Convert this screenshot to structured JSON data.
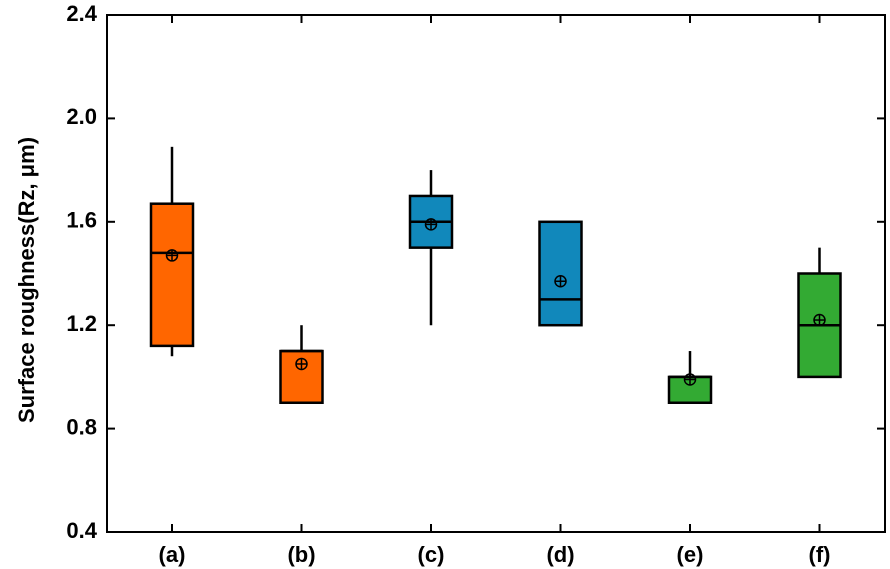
{
  "chart_data": {
    "type": "box",
    "ylabel": "Surface roughness(Rz, μm)",
    "xlabel": "",
    "ylim": [
      0.4,
      2.4
    ],
    "yticks": [
      "0.4",
      "0.8",
      "1.2",
      "1.6",
      "2.0",
      "2.4"
    ],
    "ytick_values": [
      0.4,
      0.8,
      1.2,
      1.6,
      2.0,
      2.4
    ],
    "grid": false,
    "categories": [
      "(a)",
      "(b)",
      "(c)",
      "(d)",
      "(e)",
      "(f)"
    ],
    "boxes": [
      {
        "category": "(a)",
        "whisker_low": 1.08,
        "q1": 1.12,
        "median": 1.48,
        "q3": 1.67,
        "whisker_high": 1.89,
        "mean": 1.47,
        "color": "#ff6600"
      },
      {
        "category": "(b)",
        "whisker_low": 0.9,
        "q1": 0.9,
        "median": 1.1,
        "q3": 1.1,
        "whisker_high": 1.2,
        "mean": 1.05,
        "color": "#ff6600"
      },
      {
        "category": "(c)",
        "whisker_low": 1.2,
        "q1": 1.5,
        "median": 1.6,
        "q3": 1.7,
        "whisker_high": 1.8,
        "mean": 1.59,
        "color": "#1188bb"
      },
      {
        "category": "(d)",
        "whisker_low": 1.2,
        "q1": 1.2,
        "median": 1.3,
        "q3": 1.6,
        "whisker_high": 1.6,
        "mean": 1.37,
        "color": "#1188bb"
      },
      {
        "category": "(e)",
        "whisker_low": 0.9,
        "q1": 0.9,
        "median": 1.0,
        "q3": 1.0,
        "whisker_high": 1.1,
        "mean": 0.99,
        "color": "#33aa33"
      },
      {
        "category": "(f)",
        "whisker_low": 1.0,
        "q1": 1.0,
        "median": 1.2,
        "q3": 1.4,
        "whisker_high": 1.5,
        "mean": 1.22,
        "color": "#33aa33"
      }
    ]
  }
}
